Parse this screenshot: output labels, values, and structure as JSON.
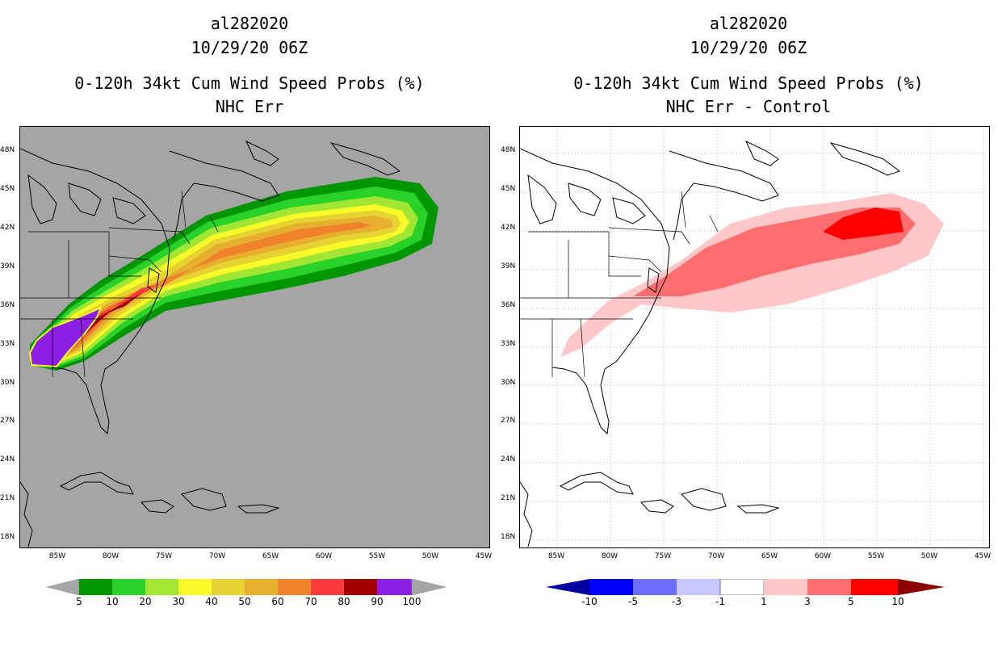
{
  "panels": [
    {
      "storm_id": "al282020",
      "datetime": "10/29/20 06Z",
      "product_title": "0-120h 34kt Cum Wind Speed Probs (%)",
      "subtitle": "NHC Err",
      "background_color": "#a5a5a5",
      "colorbar": {
        "labels": [
          "5",
          "10",
          "20",
          "30",
          "40",
          "50",
          "60",
          "70",
          "80",
          "90",
          "100"
        ],
        "under_color": "#a5a5a5",
        "over_color": "#a5a5a5",
        "colors": [
          "#009600",
          "#28d228",
          "#a0e632",
          "#fafa28",
          "#e6d232",
          "#e6af2d",
          "#f0822d",
          "#fa3c3c",
          "#a00000",
          "#8c1ee6"
        ]
      }
    },
    {
      "storm_id": "al282020",
      "datetime": "10/29/20 06Z",
      "product_title": "0-120h 34kt Cum Wind Speed Probs (%)",
      "subtitle": "NHC Err - Control",
      "background_color": "#ffffff",
      "colorbar": {
        "labels": [
          "-10",
          "-5",
          "-3",
          "-1",
          "1",
          "3",
          "5",
          "10"
        ],
        "under_color": "#0000a0",
        "over_color": "#8c0000",
        "colors": [
          "#0000ff",
          "#6e6eff",
          "#c8c8ff",
          "#ffffff",
          "#ffc8c8",
          "#ff6e6e",
          "#ff0000"
        ]
      }
    }
  ],
  "lat_labels": [
    "48N",
    "45N",
    "42N",
    "39N",
    "36N",
    "33N",
    "30N",
    "27N",
    "24N",
    "21N",
    "18N"
  ],
  "lon_labels": [
    "85W",
    "80W",
    "75W",
    "70W",
    "65W",
    "60W",
    "55W",
    "50W",
    "45W"
  ]
}
